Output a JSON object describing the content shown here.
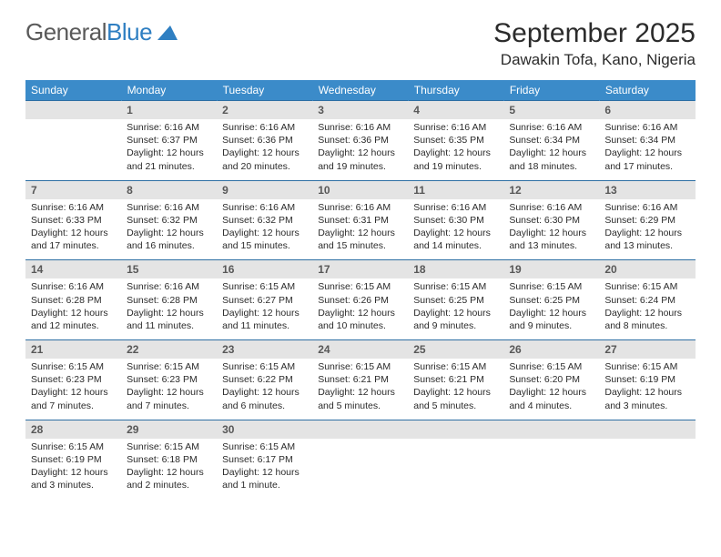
{
  "logo": {
    "text1": "General",
    "text2": "Blue"
  },
  "title": "September 2025",
  "location": "Dawakin Tofa, Kano, Nigeria",
  "colors": {
    "header_bg": "#3b8bc9",
    "header_text": "#ffffff",
    "daynum_bg": "#e4e4e4",
    "daynum_text": "#585858",
    "border_top": "#2d6ea3",
    "body_text": "#2b2b2b",
    "logo_gray": "#5a5a5a",
    "logo_blue": "#2f7fc2"
  },
  "dow": [
    "Sunday",
    "Monday",
    "Tuesday",
    "Wednesday",
    "Thursday",
    "Friday",
    "Saturday"
  ],
  "weeks": [
    [
      null,
      {
        "n": "1",
        "sr": "6:16 AM",
        "ss": "6:37 PM",
        "dl": "12 hours and 21 minutes."
      },
      {
        "n": "2",
        "sr": "6:16 AM",
        "ss": "6:36 PM",
        "dl": "12 hours and 20 minutes."
      },
      {
        "n": "3",
        "sr": "6:16 AM",
        "ss": "6:36 PM",
        "dl": "12 hours and 19 minutes."
      },
      {
        "n": "4",
        "sr": "6:16 AM",
        "ss": "6:35 PM",
        "dl": "12 hours and 19 minutes."
      },
      {
        "n": "5",
        "sr": "6:16 AM",
        "ss": "6:34 PM",
        "dl": "12 hours and 18 minutes."
      },
      {
        "n": "6",
        "sr": "6:16 AM",
        "ss": "6:34 PM",
        "dl": "12 hours and 17 minutes."
      }
    ],
    [
      {
        "n": "7",
        "sr": "6:16 AM",
        "ss": "6:33 PM",
        "dl": "12 hours and 17 minutes."
      },
      {
        "n": "8",
        "sr": "6:16 AM",
        "ss": "6:32 PM",
        "dl": "12 hours and 16 minutes."
      },
      {
        "n": "9",
        "sr": "6:16 AM",
        "ss": "6:32 PM",
        "dl": "12 hours and 15 minutes."
      },
      {
        "n": "10",
        "sr": "6:16 AM",
        "ss": "6:31 PM",
        "dl": "12 hours and 15 minutes."
      },
      {
        "n": "11",
        "sr": "6:16 AM",
        "ss": "6:30 PM",
        "dl": "12 hours and 14 minutes."
      },
      {
        "n": "12",
        "sr": "6:16 AM",
        "ss": "6:30 PM",
        "dl": "12 hours and 13 minutes."
      },
      {
        "n": "13",
        "sr": "6:16 AM",
        "ss": "6:29 PM",
        "dl": "12 hours and 13 minutes."
      }
    ],
    [
      {
        "n": "14",
        "sr": "6:16 AM",
        "ss": "6:28 PM",
        "dl": "12 hours and 12 minutes."
      },
      {
        "n": "15",
        "sr": "6:16 AM",
        "ss": "6:28 PM",
        "dl": "12 hours and 11 minutes."
      },
      {
        "n": "16",
        "sr": "6:15 AM",
        "ss": "6:27 PM",
        "dl": "12 hours and 11 minutes."
      },
      {
        "n": "17",
        "sr": "6:15 AM",
        "ss": "6:26 PM",
        "dl": "12 hours and 10 minutes."
      },
      {
        "n": "18",
        "sr": "6:15 AM",
        "ss": "6:25 PM",
        "dl": "12 hours and 9 minutes."
      },
      {
        "n": "19",
        "sr": "6:15 AM",
        "ss": "6:25 PM",
        "dl": "12 hours and 9 minutes."
      },
      {
        "n": "20",
        "sr": "6:15 AM",
        "ss": "6:24 PM",
        "dl": "12 hours and 8 minutes."
      }
    ],
    [
      {
        "n": "21",
        "sr": "6:15 AM",
        "ss": "6:23 PM",
        "dl": "12 hours and 7 minutes."
      },
      {
        "n": "22",
        "sr": "6:15 AM",
        "ss": "6:23 PM",
        "dl": "12 hours and 7 minutes."
      },
      {
        "n": "23",
        "sr": "6:15 AM",
        "ss": "6:22 PM",
        "dl": "12 hours and 6 minutes."
      },
      {
        "n": "24",
        "sr": "6:15 AM",
        "ss": "6:21 PM",
        "dl": "12 hours and 5 minutes."
      },
      {
        "n": "25",
        "sr": "6:15 AM",
        "ss": "6:21 PM",
        "dl": "12 hours and 5 minutes."
      },
      {
        "n": "26",
        "sr": "6:15 AM",
        "ss": "6:20 PM",
        "dl": "12 hours and 4 minutes."
      },
      {
        "n": "27",
        "sr": "6:15 AM",
        "ss": "6:19 PM",
        "dl": "12 hours and 3 minutes."
      }
    ],
    [
      {
        "n": "28",
        "sr": "6:15 AM",
        "ss": "6:19 PM",
        "dl": "12 hours and 3 minutes."
      },
      {
        "n": "29",
        "sr": "6:15 AM",
        "ss": "6:18 PM",
        "dl": "12 hours and 2 minutes."
      },
      {
        "n": "30",
        "sr": "6:15 AM",
        "ss": "6:17 PM",
        "dl": "12 hours and 1 minute."
      },
      null,
      null,
      null,
      null
    ]
  ],
  "labels": {
    "sunrise": "Sunrise:",
    "sunset": "Sunset:",
    "daylight": "Daylight:"
  }
}
